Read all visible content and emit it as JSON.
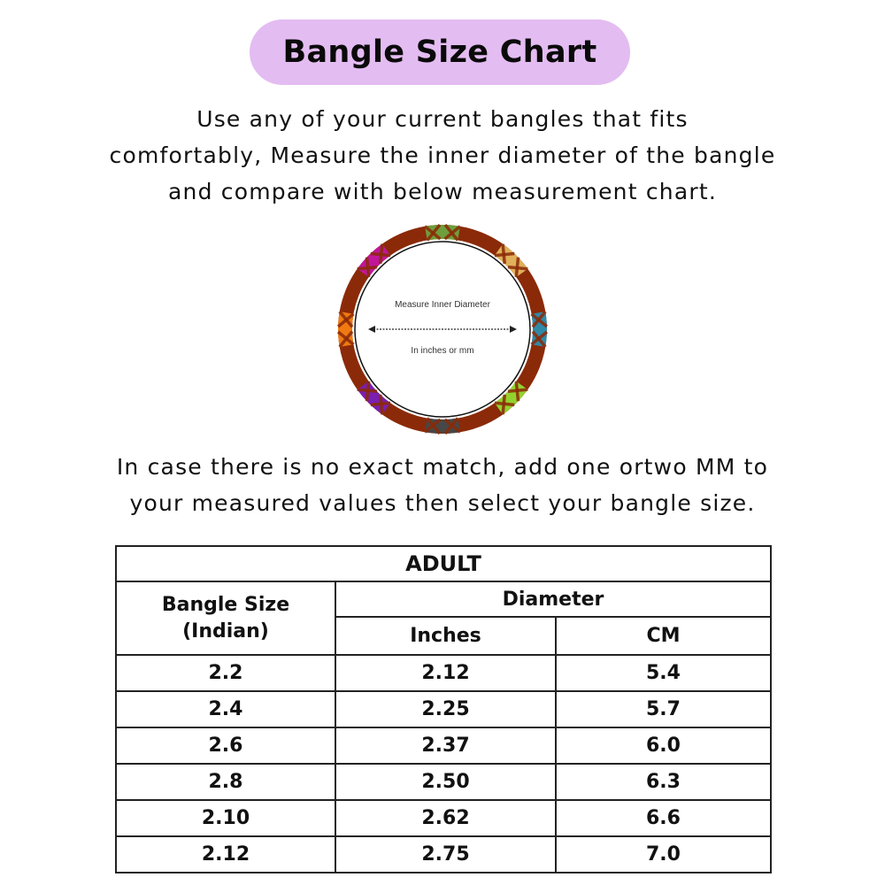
{
  "title": "Bangle Size Chart",
  "intro_lines": [
    "Use any of your current  bangles that fits",
    "comfortably, Measure the inner diameter of the bangle",
    "and compare with below measurement chart."
  ],
  "diagram": {
    "label_top": "Measure Inner Diameter",
    "label_bottom": "In inches or mm",
    "band_color": "#8b2a08",
    "accent_colors": [
      "#6f9e3c",
      "#e0b05a",
      "#2f8aa8",
      "#93d22e",
      "#474747",
      "#7a1fb0",
      "#f07a12",
      "#c0169a"
    ]
  },
  "note_lines": [
    "In case there is no exact match, add one ortwo MM to",
    "your measured values then select your bangle size."
  ],
  "table": {
    "group_title": "ADULT",
    "col_size_line1": "Bangle Size",
    "col_size_line2": "(Indian)",
    "col_diameter": "Diameter",
    "col_inches": "Inches",
    "col_cm": "CM",
    "rows": [
      {
        "size": "2.2",
        "inches": "2.12",
        "cm": "5.4"
      },
      {
        "size": "2.4",
        "inches": "2.25",
        "cm": "5.7"
      },
      {
        "size": "2.6",
        "inches": "2.37",
        "cm": "6.0"
      },
      {
        "size": "2.8",
        "inches": "2.50",
        "cm": "6.3"
      },
      {
        "size": "2.10",
        "inches": "2.62",
        "cm": "6.6"
      },
      {
        "size": "2.12",
        "inches": "2.75",
        "cm": "7.0"
      }
    ]
  }
}
